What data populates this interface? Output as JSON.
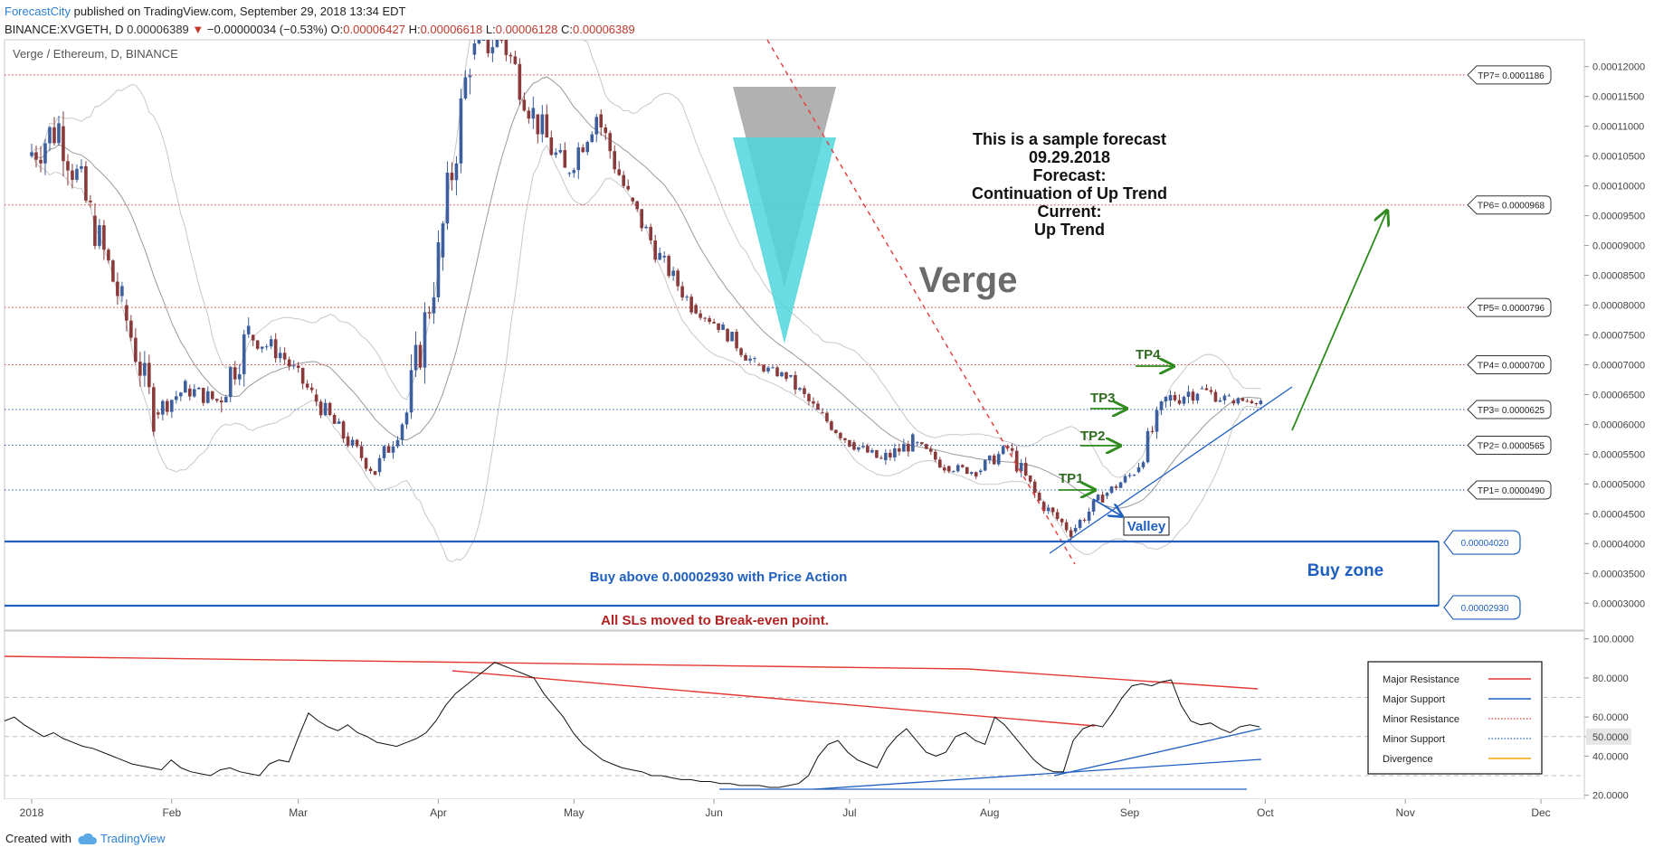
{
  "header": {
    "brand": "ForecastCity",
    "published": "published on TradingView.com, September 29, 2018 13:34 EDT",
    "symbol": "BINANCE:XVGETH, D",
    "price": "0.00006389",
    "change_arrow": "▼",
    "change": "−0.00000034 (−0.53%)",
    "o_label": "O:",
    "o_value": "0.00006427",
    "h_label": "H:",
    "h_value": "0.00006618",
    "l_label": "L:",
    "l_value": "0.00006128",
    "c_label": "C:",
    "c_value": "0.00006389"
  },
  "pane_title": "Verge / Ethereum, D, BINANCE",
  "forecast": {
    "lines": [
      "This is a sample forecast",
      "09.29.2018",
      "Forecast:",
      "Continuation of Up Trend",
      "Current:",
      "Up Trend"
    ]
  },
  "watermark": "Verge",
  "valley_label": "Valley",
  "buy_zone_label": "Buy zone",
  "buy_text": "Buy above 0.00002930 with Price Action",
  "sl_text": "All SLs moved to Break-even point.",
  "footer": {
    "created_with": "Created with",
    "tradingview": "TradingView"
  },
  "colors": {
    "bull_candle": "#3d5f9e",
    "bear_candle": "#8a3a3a",
    "resistance": "#e53935",
    "support": "#1f5fbf",
    "arrow_green": "#2e8b1e",
    "tp_label_green": "#2e6b1e",
    "cyan_triangle": "#4dd6dc",
    "grey_triangle": "#a9a9a9",
    "buy_text": "#1f5fbf",
    "sl_text": "#b22222"
  },
  "icons": {
    "tradingview_logo": "cloud-icon",
    "down_arrow": "triangle-down-icon"
  },
  "chart_data": [
    {
      "type": "candlestick",
      "title": "Verge / Ethereum, D, BINANCE",
      "x_ticks": [
        "2018",
        "Feb",
        "Mar",
        "Apr",
        "May",
        "Jun",
        "Jul",
        "Aug",
        "Sep",
        "Oct",
        "Nov",
        "Dec"
      ],
      "y_ticks": [
        "0.00012000",
        "0.00011500",
        "0.00011000",
        "0.00010500",
        "0.00010000",
        "0.00009500",
        "0.00009000",
        "0.00008500",
        "0.00008000",
        "0.00007500",
        "0.00007000",
        "0.00006500",
        "0.00006000",
        "0.00005500",
        "0.00005000",
        "0.00004500",
        "0.00004000",
        "0.00003500",
        "0.00003000"
      ],
      "y_range": [
        2.55e-05,
        0.0001245
      ],
      "candles_weekly_approx": [
        {
          "date": "2018-01-01",
          "o": 0.000105,
          "h": 0.000122,
          "l": 9e-05,
          "c": 0.00011
        },
        {
          "date": "2018-01-08",
          "o": 0.00011,
          "h": 0.000118,
          "l": 8.5e-05,
          "c": 9.5e-05
        },
        {
          "date": "2018-01-15",
          "o": 9.5e-05,
          "h": 9.8e-05,
          "l": 7e-05,
          "c": 8e-05
        },
        {
          "date": "2018-01-22",
          "o": 8e-05,
          "h": 8.2e-05,
          "l": 5.5e-05,
          "c": 6.2e-05
        },
        {
          "date": "2018-01-29",
          "o": 6.2e-05,
          "h": 7e-05,
          "l": 5.7e-05,
          "c": 6.6e-05
        },
        {
          "date": "2018-02-05",
          "o": 6.6e-05,
          "h": 7.2e-05,
          "l": 6e-05,
          "c": 6.4e-05
        },
        {
          "date": "2018-02-12",
          "o": 6.4e-05,
          "h": 9e-05,
          "l": 6.2e-05,
          "c": 7.5e-05
        },
        {
          "date": "2018-02-19",
          "o": 7.5e-05,
          "h": 8.2e-05,
          "l": 6.8e-05,
          "c": 7.2e-05
        },
        {
          "date": "2018-02-26",
          "o": 7.2e-05,
          "h": 7.4e-05,
          "l": 6.2e-05,
          "c": 6.5e-05
        },
        {
          "date": "2018-03-05",
          "o": 6.5e-05,
          "h": 6.8e-05,
          "l": 5.5e-05,
          "c": 5.8e-05
        },
        {
          "date": "2018-03-12",
          "o": 5.8e-05,
          "h": 6e-05,
          "l": 4.9e-05,
          "c": 5.2e-05
        },
        {
          "date": "2018-03-19",
          "o": 5.2e-05,
          "h": 6.5e-05,
          "l": 5e-05,
          "c": 6.2e-05
        },
        {
          "date": "2018-03-26",
          "o": 6.2e-05,
          "h": 9.5e-05,
          "l": 6e-05,
          "c": 8.8e-05
        },
        {
          "date": "2018-04-02",
          "o": 8.8e-05,
          "h": 0.000124,
          "l": 8.5e-05,
          "c": 0.000122
        },
        {
          "date": "2018-04-09",
          "o": 0.000122,
          "h": 0.000135,
          "l": 0.000112,
          "c": 0.000125
        },
        {
          "date": "2018-04-16",
          "o": 0.000125,
          "h": 0.00013,
          "l": 0.000105,
          "c": 0.000112
        },
        {
          "date": "2018-04-23",
          "o": 0.000112,
          "h": 0.000118,
          "l": 9.5e-05,
          "c": 0.000102
        },
        {
          "date": "2018-04-30",
          "o": 0.000102,
          "h": 0.000118,
          "l": 9.8e-05,
          "c": 0.000112
        },
        {
          "date": "2018-05-07",
          "o": 0.000112,
          "h": 0.000115,
          "l": 9.5e-05,
          "c": 9.8e-05
        },
        {
          "date": "2018-05-14",
          "o": 9.8e-05,
          "h": 0.0001,
          "l": 8.5e-05,
          "c": 8.8e-05
        },
        {
          "date": "2018-05-21",
          "o": 8.8e-05,
          "h": 9e-05,
          "l": 7.8e-05,
          "c": 8e-05
        },
        {
          "date": "2018-05-28",
          "o": 8e-05,
          "h": 8.2e-05,
          "l": 7.4e-05,
          "c": 7.6e-05
        },
        {
          "date": "2018-06-04",
          "o": 7.6e-05,
          "h": 7.8e-05,
          "l": 6.8e-05,
          "c": 7e-05
        },
        {
          "date": "2018-06-11",
          "o": 7e-05,
          "h": 7.2e-05,
          "l": 6.6e-05,
          "c": 6.8e-05
        },
        {
          "date": "2018-06-18",
          "o": 6.8e-05,
          "h": 7e-05,
          "l": 6e-05,
          "c": 6.2e-05
        },
        {
          "date": "2018-06-25",
          "o": 6.2e-05,
          "h": 6.4e-05,
          "l": 5.5e-05,
          "c": 5.7e-05
        },
        {
          "date": "2018-07-02",
          "o": 5.7e-05,
          "h": 6e-05,
          "l": 5.2e-05,
          "c": 5.4e-05
        },
        {
          "date": "2018-07-09",
          "o": 5.4e-05,
          "h": 6.1e-05,
          "l": 5e-05,
          "c": 5.7e-05
        },
        {
          "date": "2018-07-16",
          "o": 5.7e-05,
          "h": 5.9e-05,
          "l": 5.1e-05,
          "c": 5.3e-05
        },
        {
          "date": "2018-07-23",
          "o": 5.3e-05,
          "h": 5.6e-05,
          "l": 5e-05,
          "c": 5.2e-05
        },
        {
          "date": "2018-07-30",
          "o": 5.2e-05,
          "h": 5.8e-05,
          "l": 4.9e-05,
          "c": 5.6e-05
        },
        {
          "date": "2018-08-06",
          "o": 5.6e-05,
          "h": 5.8e-05,
          "l": 4.5e-05,
          "c": 4.7e-05
        },
        {
          "date": "2018-08-13",
          "o": 4.7e-05,
          "h": 4.9e-05,
          "l": 4e-05,
          "c": 4.2e-05
        },
        {
          "date": "2018-08-20",
          "o": 4.2e-05,
          "h": 5e-05,
          "l": 4.1e-05,
          "c": 4.8e-05
        },
        {
          "date": "2018-08-27",
          "o": 4.8e-05,
          "h": 5.3e-05,
          "l": 4.6e-05,
          "c": 5.2e-05
        },
        {
          "date": "2018-09-03",
          "o": 5.2e-05,
          "h": 6.6e-05,
          "l": 5.1e-05,
          "c": 6.4e-05
        },
        {
          "date": "2018-09-10",
          "o": 6.4e-05,
          "h": 7.4e-05,
          "l": 6e-05,
          "c": 6.6e-05
        },
        {
          "date": "2018-09-17",
          "o": 6.6e-05,
          "h": 6.9e-05,
          "l": 6e-05,
          "c": 6.4e-05
        },
        {
          "date": "2018-09-24",
          "o": 6.4e-05,
          "h": 6.6e-05,
          "l": 6.1e-05,
          "c": 6.4e-05
        }
      ],
      "levels": [
        {
          "label": "TP7= 0.0001186",
          "value": 0.0001186,
          "style": "resistance"
        },
        {
          "label": "TP6= 0.0000968",
          "value": 9.68e-05,
          "style": "resistance"
        },
        {
          "label": "TP5= 0.0000796",
          "value": 7.96e-05,
          "style": "resistance"
        },
        {
          "label": "TP4= 0.0000700",
          "value": 7e-05,
          "style": "resistance"
        },
        {
          "label": "TP3= 0.0000625",
          "value": 6.25e-05,
          "style": "support"
        },
        {
          "label": "TP2= 0.0000565",
          "value": 5.65e-05,
          "style": "support"
        },
        {
          "label": "TP1= 0.0000490",
          "value": 4.9e-05,
          "style": "support"
        },
        {
          "label": "0.00004020",
          "value": 4.02e-05,
          "style": "zone"
        },
        {
          "label": "0.00002930",
          "value": 2.93e-05,
          "style": "zone"
        }
      ],
      "tp_markers": [
        {
          "label": "TP1",
          "date": "2018-08-22",
          "value": 4.9e-05
        },
        {
          "label": "TP2",
          "date": "2018-08-29",
          "value": 5.65e-05
        },
        {
          "label": "TP3",
          "date": "2018-08-27",
          "value": 6.25e-05
        },
        {
          "label": "TP4",
          "date": "2018-09-05",
          "value": 7e-05
        }
      ]
    },
    {
      "type": "line",
      "title": "",
      "y_ticks": [
        "100.0000",
        "80.0000",
        "60.0000",
        "50.0000",
        "40.0000",
        "20.0000"
      ],
      "y_range": [
        18,
        104
      ],
      "series_values": [
        58,
        60,
        56,
        53,
        50,
        52,
        49,
        47,
        45,
        44,
        42,
        40,
        38,
        36,
        35,
        34,
        33,
        38,
        34,
        32,
        31,
        30,
        33,
        34,
        32,
        31,
        30,
        36,
        38,
        37,
        50,
        62,
        58,
        55,
        53,
        56,
        52,
        50,
        47,
        46,
        45,
        47,
        49,
        52,
        58,
        66,
        72,
        76,
        80,
        84,
        88,
        86,
        84,
        82,
        80,
        72,
        66,
        60,
        52,
        46,
        42,
        38,
        36,
        34,
        33,
        32,
        30,
        30,
        29,
        28,
        28,
        27,
        27,
        26,
        26,
        25,
        25,
        25,
        24,
        24,
        25,
        26,
        30,
        40,
        46,
        48,
        42,
        38,
        36,
        34,
        44,
        50,
        54,
        48,
        42,
        40,
        42,
        50,
        52,
        48,
        46,
        60,
        56,
        50,
        44,
        38,
        34,
        32,
        32,
        48,
        54,
        56,
        55,
        62,
        70,
        76,
        77,
        76,
        78,
        79,
        66,
        58,
        56,
        57,
        54,
        52,
        55,
        56,
        55
      ],
      "legend": [
        {
          "name": "Major Resistance",
          "color": "#e53935",
          "style": "solid"
        },
        {
          "name": "Major Support",
          "color": "#1f5fbf",
          "style": "solid"
        },
        {
          "name": "Minor Resistance",
          "color": "#e53935",
          "style": "dotted"
        },
        {
          "name": "Minor Support",
          "color": "#1f5fbf",
          "style": "dotted"
        },
        {
          "name": "Divergence",
          "color": "#f0a500",
          "style": "solid"
        }
      ]
    }
  ]
}
